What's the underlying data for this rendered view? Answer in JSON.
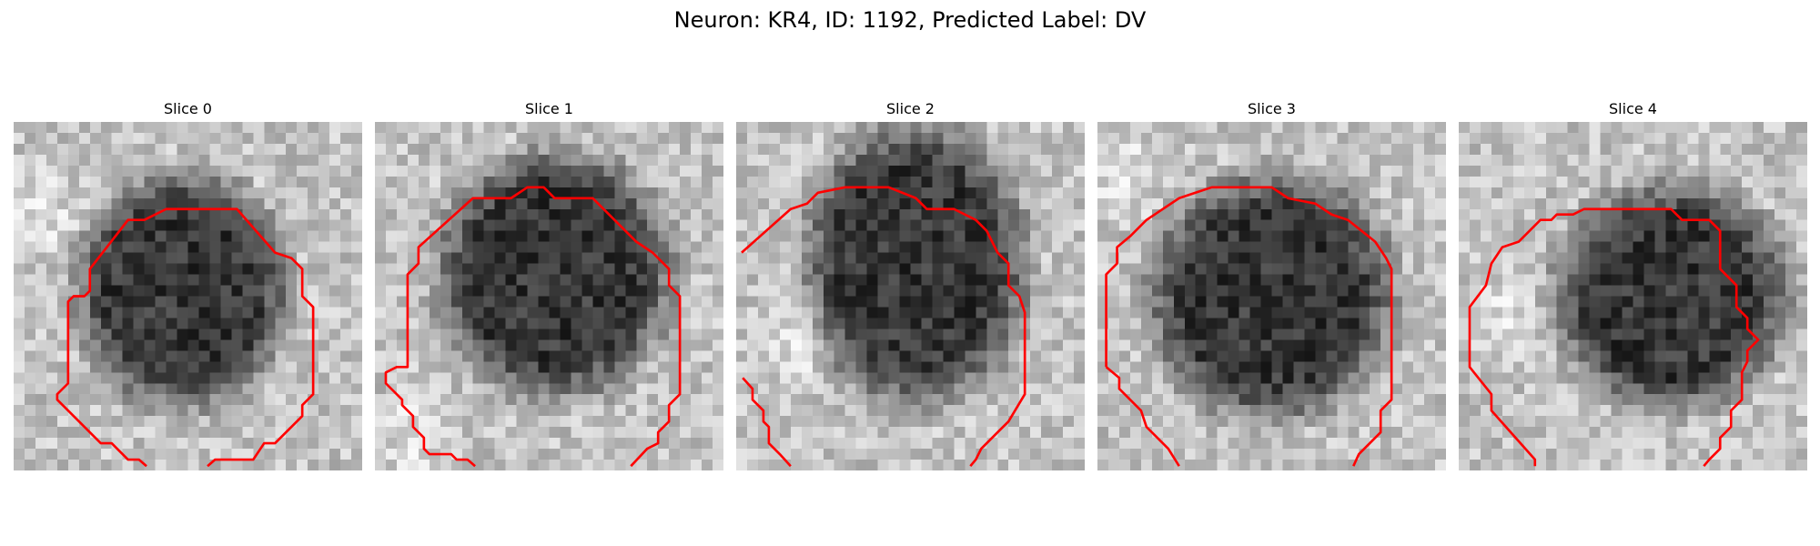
{
  "figure": {
    "title": "Neuron: KR4, ID: 1192, Predicted Label: DV",
    "contour_color": "#ff0000",
    "panels": [
      {
        "title": "Slice 0",
        "image": "grayscale-microscopy-slice-with-red-outline"
      },
      {
        "title": "Slice 1",
        "image": "grayscale-microscopy-slice-with-red-outline"
      },
      {
        "title": "Slice 2",
        "image": "grayscale-microscopy-slice-with-red-outline"
      },
      {
        "title": "Slice 3",
        "image": "grayscale-microscopy-slice-with-red-outline"
      },
      {
        "title": "Slice 4",
        "image": "grayscale-microscopy-slice-with-red-outline"
      }
    ]
  }
}
